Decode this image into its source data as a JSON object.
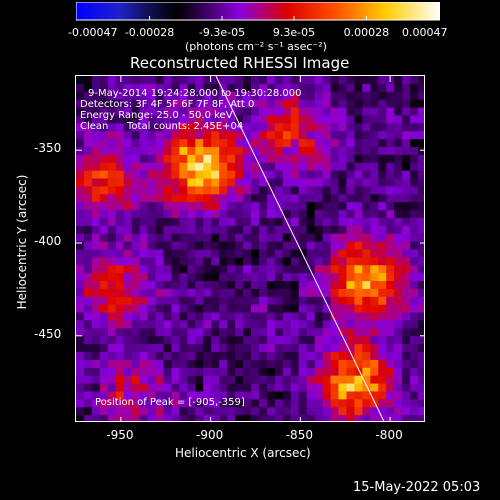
{
  "chart_data": {
    "type": "heatmap",
    "title": "Reconstructed RHESSI Image",
    "xlabel": "Heliocentric X (arcsec)",
    "ylabel": "Heliocentric Y (arcsec)",
    "xlim": [
      -975,
      -780
    ],
    "ylim": [
      -497,
      -310
    ],
    "x_ticks": [
      "-950",
      "-900",
      "-850",
      "-800"
    ],
    "x_tick_values": [
      -950,
      -900,
      -850,
      -800
    ],
    "y_ticks": [
      "-350",
      "-400",
      "-450"
    ],
    "y_tick_values": [
      -350,
      -400,
      -450
    ],
    "colorbar": {
      "ticks": [
        "-0.00047",
        "-0.00028",
        "-9.3e-05",
        "9.3e-05",
        "0.00028",
        "0.00047"
      ],
      "tick_values": [
        -0.00047,
        -0.00028,
        -9.3e-05,
        9.3e-05,
        0.00028,
        0.00047
      ],
      "range": [
        -0.00047,
        0.00047
      ],
      "colors": [
        "#0000ff",
        "#000000",
        "#aa00ff",
        "#ff0000",
        "#ffcc00",
        "#ffffff"
      ]
    },
    "units_label": "(photons cm⁻² s⁻¹ asec⁻²)",
    "annotations": {
      "time_range": "9-May-2014 19:24:28.000 to 19:30:28.000",
      "detectors": "Detectors: 3F 4F 5F 6F 7F 8F, Att 0",
      "energy": "Energy Range: 25.0 - 50.0 keV",
      "method": "Clean",
      "counts": "Total counts: 2.45E+04",
      "peak": "Position of Peak = [-905,-359]"
    },
    "peak_position": [
      -905,
      -359
    ],
    "sources": [
      {
        "x": -905,
        "y": -359,
        "intensity": 0.00047
      },
      {
        "x": -960,
        "y": -365,
        "intensity": 0.00025
      },
      {
        "x": -812,
        "y": -420,
        "intensity": 0.0004
      },
      {
        "x": -820,
        "y": -475,
        "intensity": 0.00042
      },
      {
        "x": -855,
        "y": -340,
        "intensity": 0.0002
      },
      {
        "x": -955,
        "y": -425,
        "intensity": 0.0002
      },
      {
        "x": -945,
        "y": -480,
        "intensity": 0.00016
      }
    ],
    "limb_line": {
      "x": [
        -897,
        -803
      ],
      "y": [
        -310,
        -497
      ]
    }
  },
  "footer": {
    "date": "15-May-2022 05:03"
  }
}
